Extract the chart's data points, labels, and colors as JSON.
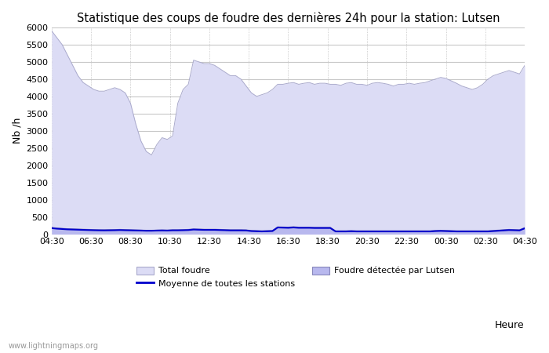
{
  "title": "Statistique des coups de foudre des dernières 24h pour la station: Lutsen",
  "ylabel": "Nb /h",
  "xlabel": "Heure",
  "watermark": "www.lightningmaps.org",
  "x_labels": [
    "04:30",
    "06:30",
    "08:30",
    "10:30",
    "12:30",
    "14:30",
    "16:30",
    "18:30",
    "20:30",
    "22:30",
    "00:30",
    "02:30",
    "04:30"
  ],
  "ylim": [
    0,
    6000
  ],
  "yticks": [
    0,
    500,
    1000,
    1500,
    2000,
    2500,
    3000,
    3500,
    4000,
    4500,
    5000,
    5500,
    6000
  ],
  "total_foudre_color": "#dcdcf5",
  "total_foudre_line_color": "#aaaacc",
  "lutsen_color": "#b8b8ee",
  "lutsen_line_color": "#8888bb",
  "moyenne_color": "#0000cc",
  "bg_color": "#ffffff",
  "grid_color": "#c8c8c8",
  "title_fontsize": 10.5,
  "total_foudre_values": [
    5900,
    5700,
    5500,
    5200,
    4900,
    4600,
    4400,
    4300,
    4200,
    4150,
    4150,
    4200,
    4250,
    4200,
    4100,
    3800,
    3200,
    2700,
    2400,
    2300,
    2600,
    2800,
    2750,
    2850,
    3800,
    4200,
    4350,
    5050,
    5000,
    4950,
    4950,
    4900,
    4800,
    4700,
    4600,
    4600,
    4500,
    4300,
    4100,
    4000,
    4050,
    4100,
    4200,
    4350,
    4350,
    4380,
    4400,
    4350,
    4380,
    4400,
    4350,
    4380,
    4380,
    4350,
    4350,
    4320,
    4380,
    4400,
    4350,
    4350,
    4320,
    4380,
    4400,
    4380,
    4350,
    4300,
    4350,
    4350,
    4380,
    4350,
    4380,
    4400,
    4450,
    4500,
    4550,
    4520,
    4450,
    4380,
    4300,
    4250,
    4200,
    4250,
    4350,
    4500,
    4600,
    4650,
    4700,
    4750,
    4700,
    4650,
    4900
  ],
  "lutsen_values": [
    200,
    180,
    170,
    160,
    155,
    150,
    145,
    140,
    135,
    130,
    130,
    135,
    135,
    140,
    135,
    130,
    125,
    120,
    115,
    115,
    120,
    125,
    120,
    130,
    130,
    135,
    140,
    155,
    150,
    145,
    145,
    145,
    140,
    135,
    130,
    130,
    130,
    125,
    110,
    105,
    100,
    105,
    110,
    215,
    210,
    205,
    220,
    205,
    205,
    205,
    200,
    200,
    200,
    200,
    100,
    100,
    100,
    105,
    100,
    100,
    100,
    100,
    100,
    100,
    100,
    100,
    100,
    100,
    100,
    100,
    100,
    100,
    100,
    110,
    115,
    110,
    105,
    100,
    100,
    100,
    100,
    100,
    100,
    100,
    110,
    120,
    130,
    140,
    135,
    130,
    195
  ],
  "moyenne_values": [
    175,
    160,
    150,
    140,
    135,
    130,
    125,
    120,
    115,
    112,
    110,
    112,
    115,
    120,
    115,
    112,
    108,
    105,
    100,
    100,
    105,
    108,
    105,
    112,
    112,
    115,
    120,
    135,
    130,
    125,
    125,
    125,
    120,
    115,
    110,
    110,
    110,
    108,
    90,
    85,
    80,
    85,
    90,
    195,
    190,
    185,
    195,
    185,
    185,
    185,
    180,
    180,
    180,
    180,
    80,
    80,
    80,
    85,
    80,
    80,
    80,
    80,
    80,
    80,
    80,
    80,
    80,
    80,
    80,
    80,
    80,
    80,
    80,
    90,
    95,
    90,
    85,
    80,
    80,
    80,
    80,
    80,
    80,
    80,
    90,
    100,
    110,
    120,
    115,
    110,
    170
  ]
}
